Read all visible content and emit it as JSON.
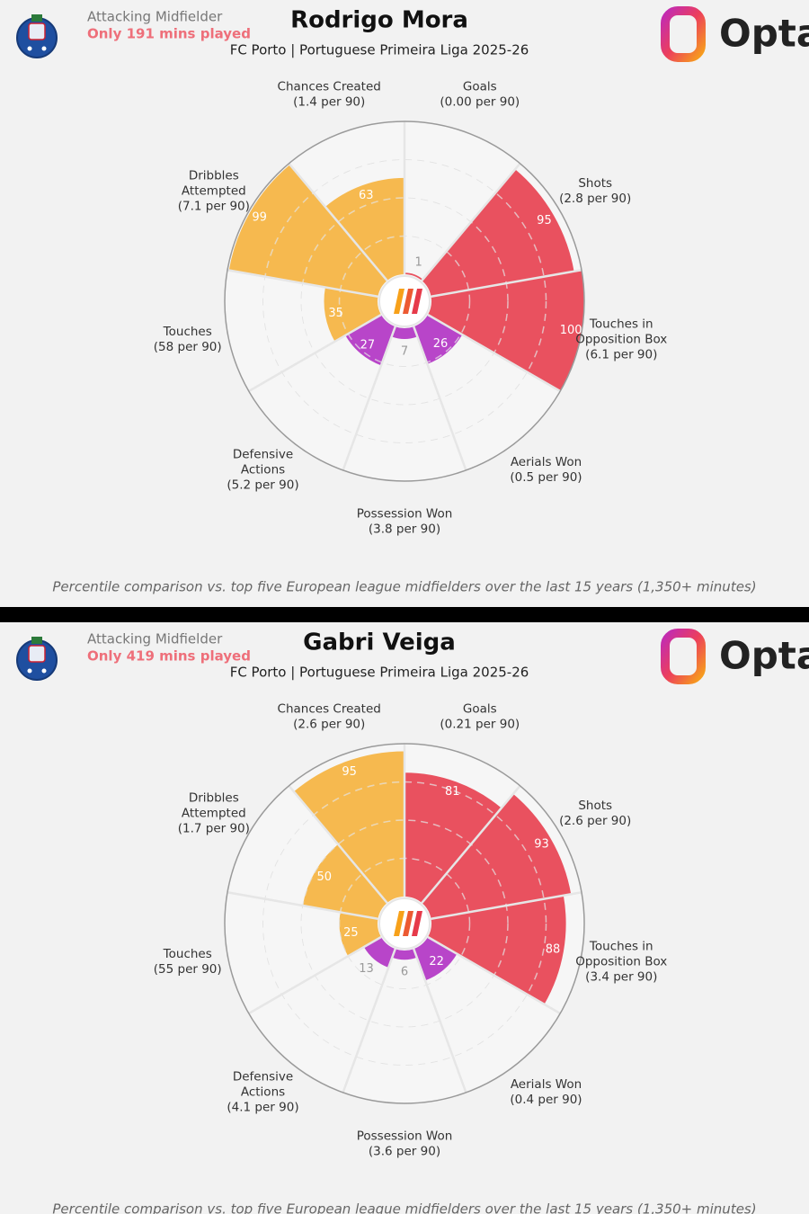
{
  "chart_data": [
    {
      "type": "pizza",
      "title": "Rodrigo Mora",
      "subtitle": "FC Porto | Portuguese Primeira Liga 2025-26",
      "position": "Attacking Midfielder",
      "minutes_note": "Only 191 mins played",
      "brand": "Opta",
      "categories": [
        [
          "Goals"
        ],
        [
          "Shots"
        ],
        [
          "Touches in",
          "Opposition Box"
        ],
        [
          "Aerials Won"
        ],
        [
          "Possession Won"
        ],
        [
          "Defensive",
          "Actions"
        ],
        [
          "Touches"
        ],
        [
          "Dribbles",
          "Attempted"
        ],
        [
          "Chances Created"
        ]
      ],
      "per90": [
        "(0.00 per 90)",
        "(2.8 per 90)",
        "(6.1 per 90)",
        "(0.5 per 90)",
        "(3.8 per 90)",
        "(5.2 per 90)",
        "(58 per 90)",
        "(7.1 per 90)",
        "(1.4 per 90)"
      ],
      "values": [
        1,
        95,
        100,
        26,
        7,
        27,
        35,
        99,
        63
      ],
      "colors": [
        "#e9515f",
        "#e9515f",
        "#e9515f",
        "#b845c9",
        "#b845c9",
        "#b845c9",
        "#f6b94f",
        "#f6b94f",
        "#f6b94f"
      ],
      "rlim": [
        0,
        100
      ],
      "rticks": [
        25,
        50,
        75
      ],
      "footnote": "Percentile comparison vs. top five European league midfielders over the last 15 years (1,350+ minutes)"
    },
    {
      "type": "pizza",
      "title": "Gabri Veiga",
      "subtitle": "FC Porto | Portuguese Primeira Liga 2025-26",
      "position": "Attacking Midfielder",
      "minutes_note": "Only 419 mins played",
      "brand": "Opta",
      "categories": [
        [
          "Goals"
        ],
        [
          "Shots"
        ],
        [
          "Touches in",
          "Opposition Box"
        ],
        [
          "Aerials Won"
        ],
        [
          "Possession Won"
        ],
        [
          "Defensive",
          "Actions"
        ],
        [
          "Touches"
        ],
        [
          "Dribbles",
          "Attempted"
        ],
        [
          "Chances Created"
        ]
      ],
      "per90": [
        "(0.21 per 90)",
        "(2.6 per 90)",
        "(3.4 per 90)",
        "(0.4 per 90)",
        "(3.6 per 90)",
        "(4.1 per 90)",
        "(55 per 90)",
        "(1.7 per 90)",
        "(2.6 per 90)"
      ],
      "values": [
        81,
        93,
        88,
        22,
        6,
        13,
        25,
        50,
        95
      ],
      "colors": [
        "#e9515f",
        "#e9515f",
        "#e9515f",
        "#b845c9",
        "#b845c9",
        "#b845c9",
        "#f6b94f",
        "#f6b94f",
        "#f6b94f"
      ],
      "rlim": [
        0,
        100
      ],
      "rticks": [
        25,
        50,
        75
      ],
      "footnote": "Percentile comparison vs. top five European league midfielders over the last 15 years (1,350+ minutes)"
    }
  ]
}
